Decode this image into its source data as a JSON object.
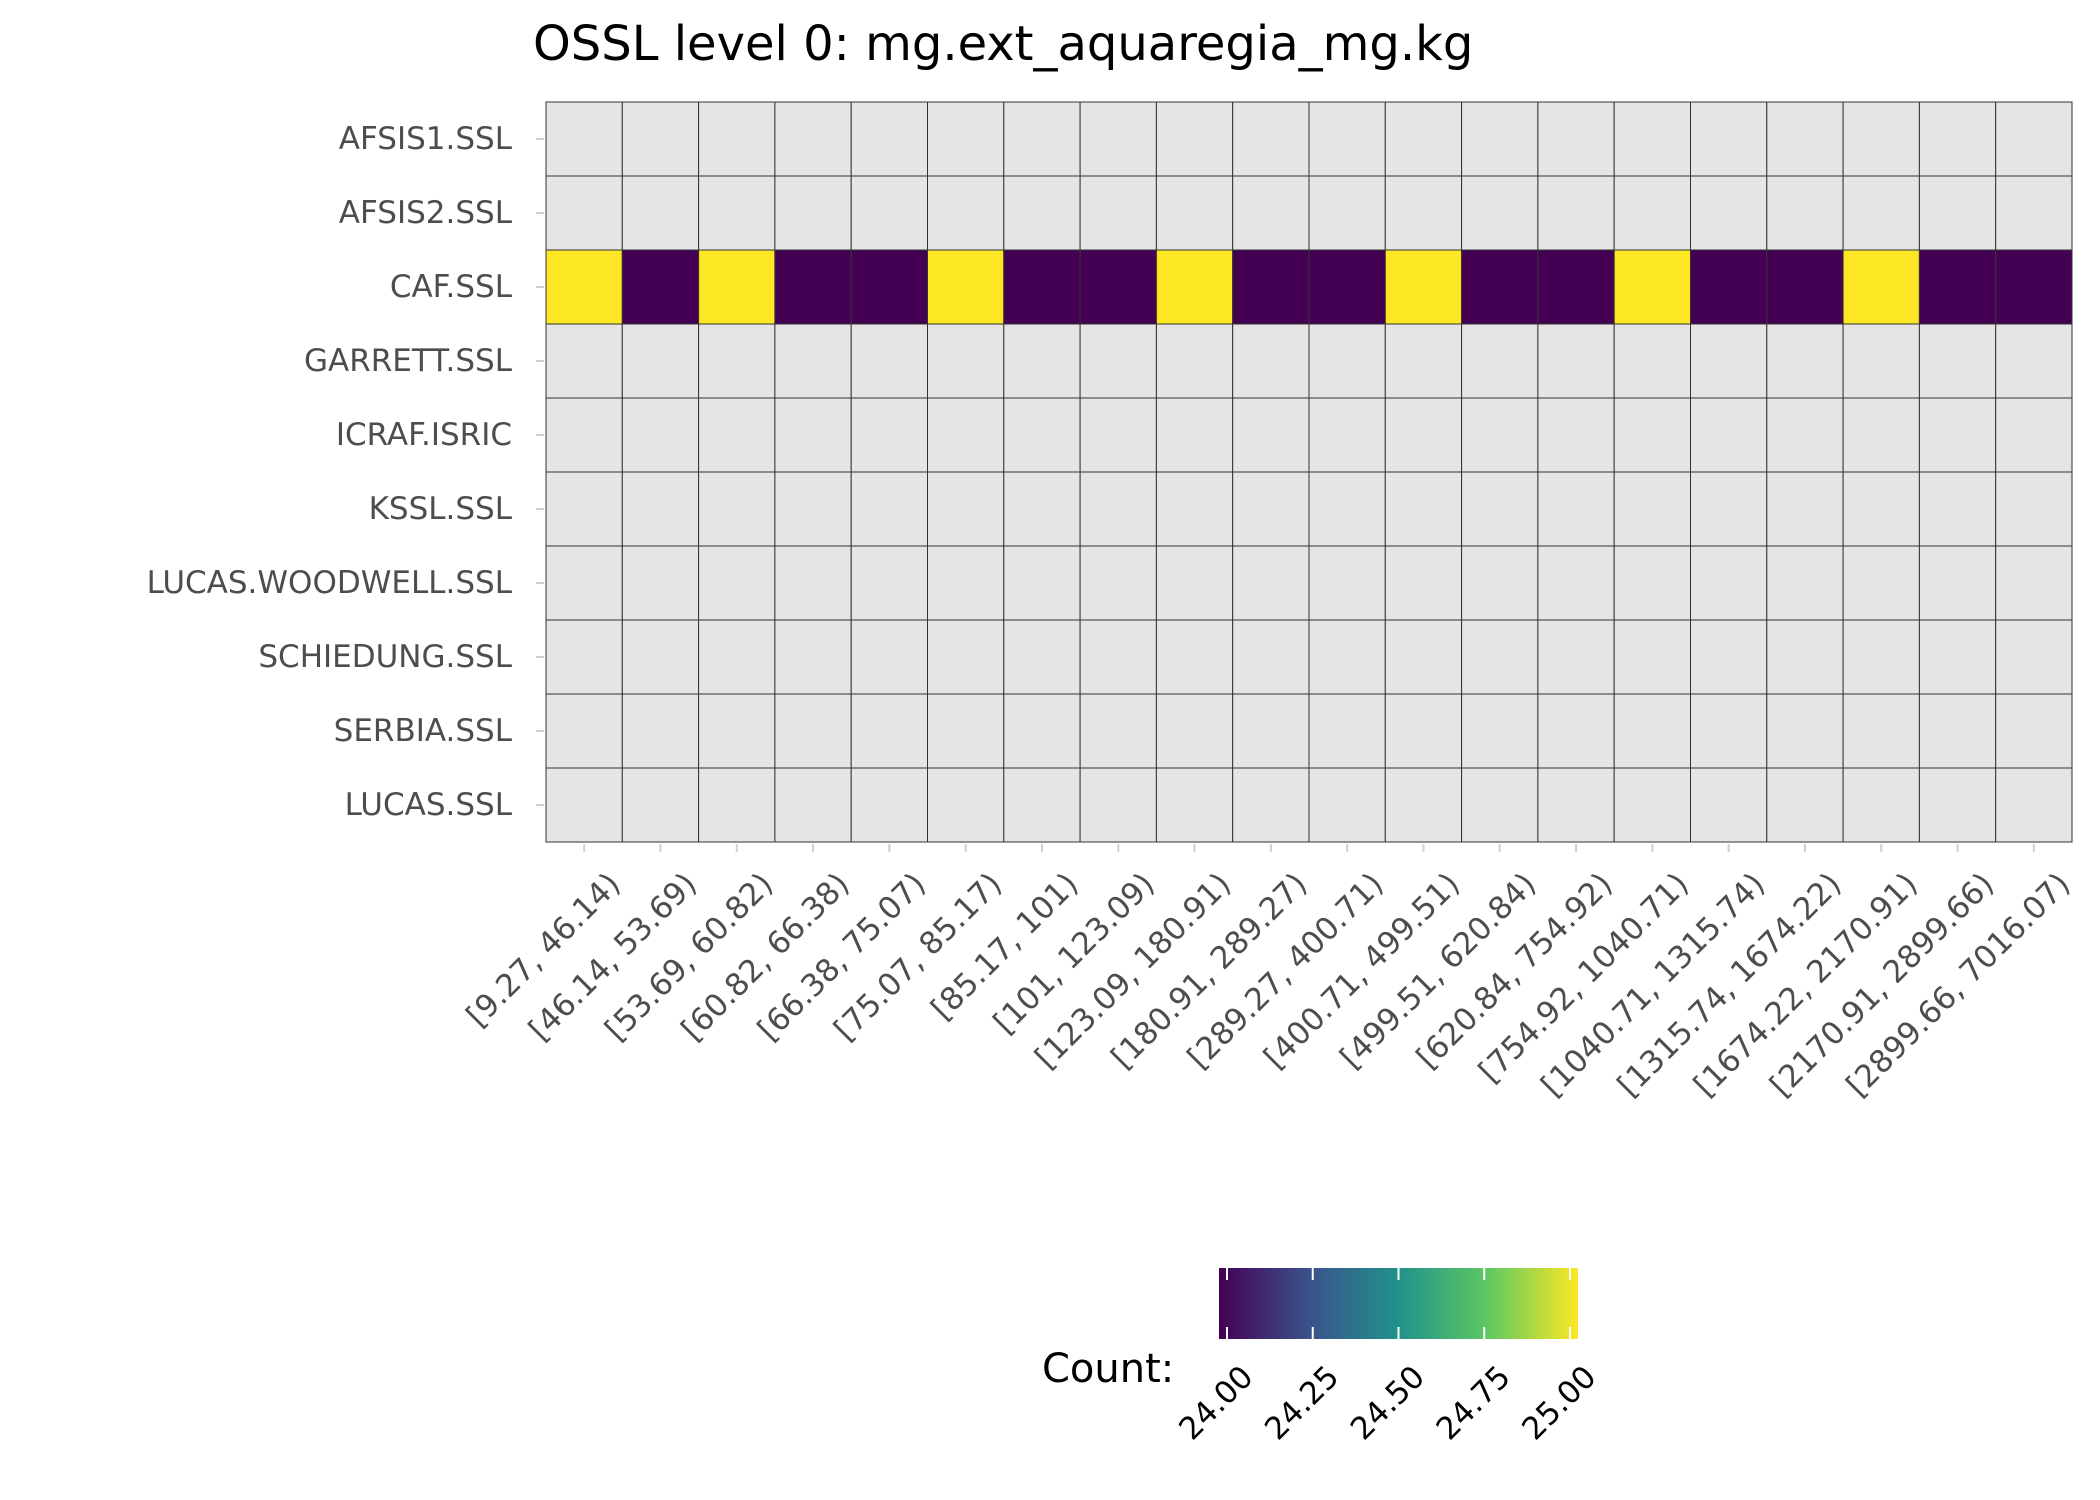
{
  "chart_data": {
    "type": "heatmap",
    "title": "OSSL level 0: mg.ext_aquaregia_mg.kg",
    "xlabel": "",
    "ylabel": "",
    "x_categories": [
      "[9.27, 46.14)",
      "[46.14, 53.69)",
      "[53.69, 60.82)",
      "[60.82, 66.38)",
      "[66.38, 75.07)",
      "[75.07, 85.17)",
      "[85.17, 101)",
      "[101, 123.09)",
      "[123.09, 180.91)",
      "[180.91, 289.27)",
      "[289.27, 400.71)",
      "[400.71, 499.51)",
      "[499.51, 620.84)",
      "[620.84, 754.92)",
      "[754.92, 1040.71)",
      "[1040.71, 1315.74)",
      "[1315.74, 1674.22)",
      "[1674.22, 2170.91)",
      "[2170.91, 2899.66)",
      "[2899.66, 7016.07)"
    ],
    "y_categories": [
      "AFSIS1.SSL",
      "AFSIS2.SSL",
      "CAF.SSL",
      "GARRETT.SSL",
      "ICRAF.ISRIC",
      "KSSL.SSL",
      "LUCAS.WOODWELL.SSL",
      "SCHIEDUNG.SSL",
      "SERBIA.SSL",
      "LUCAS.SSL"
    ],
    "values": [
      [
        null,
        null,
        null,
        null,
        null,
        null,
        null,
        null,
        null,
        null,
        null,
        null,
        null,
        null,
        null,
        null,
        null,
        null,
        null,
        null
      ],
      [
        null,
        null,
        null,
        null,
        null,
        null,
        null,
        null,
        null,
        null,
        null,
        null,
        null,
        null,
        null,
        null,
        null,
        null,
        null,
        null
      ],
      [
        25,
        24,
        25,
        24,
        24,
        25,
        24,
        24,
        25,
        24,
        24,
        25,
        24,
        24,
        25,
        24,
        24,
        25,
        24,
        24
      ],
      [
        null,
        null,
        null,
        null,
        null,
        null,
        null,
        null,
        null,
        null,
        null,
        null,
        null,
        null,
        null,
        null,
        null,
        null,
        null,
        null
      ],
      [
        null,
        null,
        null,
        null,
        null,
        null,
        null,
        null,
        null,
        null,
        null,
        null,
        null,
        null,
        null,
        null,
        null,
        null,
        null,
        null
      ],
      [
        null,
        null,
        null,
        null,
        null,
        null,
        null,
        null,
        null,
        null,
        null,
        null,
        null,
        null,
        null,
        null,
        null,
        null,
        null,
        null
      ],
      [
        null,
        null,
        null,
        null,
        null,
        null,
        null,
        null,
        null,
        null,
        null,
        null,
        null,
        null,
        null,
        null,
        null,
        null,
        null,
        null
      ],
      [
        null,
        null,
        null,
        null,
        null,
        null,
        null,
        null,
        null,
        null,
        null,
        null,
        null,
        null,
        null,
        null,
        null,
        null,
        null,
        null
      ],
      [
        null,
        null,
        null,
        null,
        null,
        null,
        null,
        null,
        null,
        null,
        null,
        null,
        null,
        null,
        null,
        null,
        null,
        null,
        null,
        null
      ],
      [
        null,
        null,
        null,
        null,
        null,
        null,
        null,
        null,
        null,
        null,
        null,
        null,
        null,
        null,
        null,
        null,
        null,
        null,
        null,
        null
      ]
    ],
    "missing_color": "#e5e5e5",
    "colorscale": "viridis",
    "colorscale_stops": [
      "#440154",
      "#3b528b",
      "#21918c",
      "#5ec962",
      "#fde725"
    ],
    "legend": {
      "title": "Count:",
      "position": "bottom",
      "range": [
        24,
        25
      ],
      "ticks": [
        "24.00",
        "24.25",
        "24.50",
        "24.75",
        "25.00"
      ]
    },
    "grid": true
  }
}
